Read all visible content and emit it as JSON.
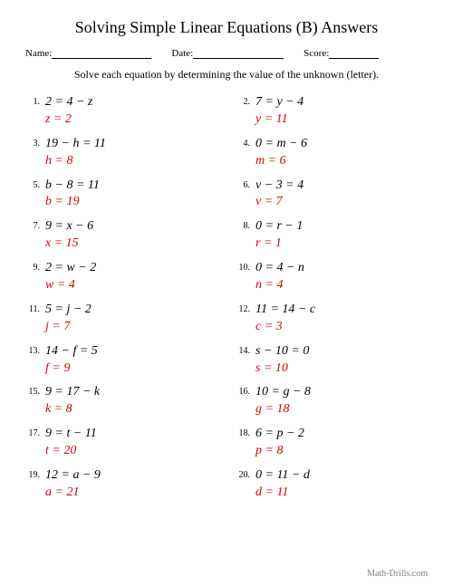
{
  "title": "Solving Simple Linear Equations (B) Answers",
  "meta": {
    "name_label": "Name:",
    "date_label": "Date:",
    "score_label": "Score:"
  },
  "instructions": "Solve each equation by determining the value of the unknown (letter).",
  "problems": [
    {
      "n": "1.",
      "eqn": "2 = 4 − z",
      "ans": "z = 2"
    },
    {
      "n": "2.",
      "eqn": "7 = y − 4",
      "ans": "y = 11"
    },
    {
      "n": "3.",
      "eqn": "19 − h = 11",
      "ans": "h = 8"
    },
    {
      "n": "4.",
      "eqn": "0 = m − 6",
      "ans": "m = 6"
    },
    {
      "n": "5.",
      "eqn": "b − 8 = 11",
      "ans": "b = 19"
    },
    {
      "n": "6.",
      "eqn": "v − 3 = 4",
      "ans": "v = 7"
    },
    {
      "n": "7.",
      "eqn": "9 = x − 6",
      "ans": "x = 15"
    },
    {
      "n": "8.",
      "eqn": "0 = r − 1",
      "ans": "r = 1"
    },
    {
      "n": "9.",
      "eqn": "2 = w − 2",
      "ans": "w = 4"
    },
    {
      "n": "10.",
      "eqn": "0 = 4 − n",
      "ans": "n = 4"
    },
    {
      "n": "11.",
      "eqn": "5 = j − 2",
      "ans": "j = 7"
    },
    {
      "n": "12.",
      "eqn": "11 = 14 − c",
      "ans": "c = 3"
    },
    {
      "n": "13.",
      "eqn": "14 − f = 5",
      "ans": "f = 9"
    },
    {
      "n": "14.",
      "eqn": "s − 10 = 0",
      "ans": "s = 10"
    },
    {
      "n": "15.",
      "eqn": "9 = 17 − k",
      "ans": "k = 8"
    },
    {
      "n": "16.",
      "eqn": "10 = g − 8",
      "ans": "g = 18"
    },
    {
      "n": "17.",
      "eqn": "9 = t − 11",
      "ans": "t = 20"
    },
    {
      "n": "18.",
      "eqn": "6 = p − 2",
      "ans": "p = 8"
    },
    {
      "n": "19.",
      "eqn": "12 = a − 9",
      "ans": "a = 21"
    },
    {
      "n": "20.",
      "eqn": "0 = 11 − d",
      "ans": "d = 11"
    }
  ],
  "footer": "Math-Drills.com",
  "colors": {
    "answer": "#ce0606",
    "text": "#000000",
    "footer": "#808080",
    "background": "#ffffff"
  },
  "layout": {
    "columns": 2,
    "name_line_width": 110,
    "date_line_width": 100,
    "score_line_width": 55
  },
  "fonts": {
    "title_size": 18,
    "body_size": 14,
    "meta_size": 11,
    "instruction_size": 12,
    "number_size": 10
  }
}
